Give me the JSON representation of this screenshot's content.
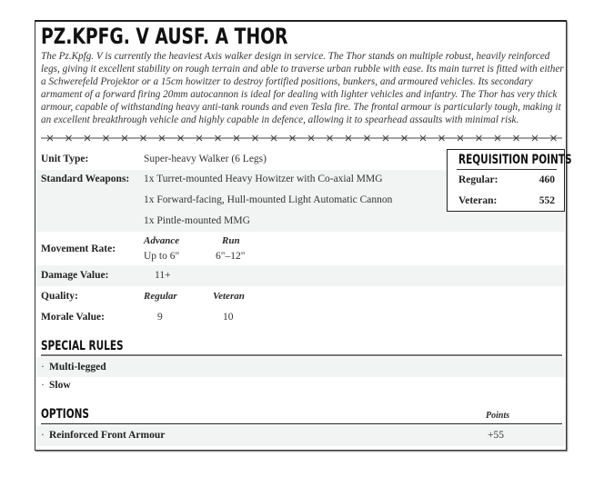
{
  "title": "PZ.KPFG. V AUSF. A THOR",
  "description": "The Pz.Kpfg. V is currently the heaviest Axis walker design in service. The Thor stands on multiple robust, heavily reinforced legs, giving it excellent stability on rough terrain and able to traverse urban rubble with ease. Its main turret is fitted with either a Schwerefeld Projektor or a 15cm howitzer to destroy fortified positions, bunkers, and armoured vehicles. Its secondary armament of a forward firing 20mm autocannon is ideal for dealing with lighter vehicles and infantry. The Thor has very thick armour, capable of withstanding heavy anti-tank rounds and even Tesla fire. The frontal armour is particularly tough, making it an excellent breakthrough vehicle and highly capable in defence, allowing it to spearhead assaults with minimal risk.",
  "stats": {
    "unit_type_label": "Unit Type:",
    "unit_type": "Super-heavy Walker (6 Legs)",
    "weapons_label": "Standard Weapons:",
    "weapons": [
      "1x Turret-mounted Heavy Howitzer with Co-axial MMG",
      "1x Forward-facing, Hull-mounted Light Automatic Cannon",
      "1x Pintle-mounted MMG"
    ],
    "movement_label": "Movement Rate:",
    "advance_label": "Advance",
    "advance": "Up to 6\"",
    "run_label": "Run",
    "run": "6\"–12\"",
    "damage_label": "Damage Value:",
    "damage": "11+",
    "quality_label": "Quality:",
    "regular_label": "Regular",
    "veteran_label": "Veteran",
    "morale_label": "Morale Value:",
    "morale_regular": "9",
    "morale_veteran": "10"
  },
  "requisition": {
    "title": "REQUISITION POINTS",
    "regular_label": "Regular:",
    "regular": "460",
    "veteran_label": "Veteran:",
    "veteran": "552"
  },
  "special_rules": {
    "title": "SPECIAL RULES",
    "items": [
      "Multi-legged",
      "Slow"
    ]
  },
  "options": {
    "title": "OPTIONS",
    "points_label": "Points",
    "items": [
      {
        "name": "Reinforced Front Armour",
        "points": "+55"
      }
    ]
  },
  "bullet": "·"
}
